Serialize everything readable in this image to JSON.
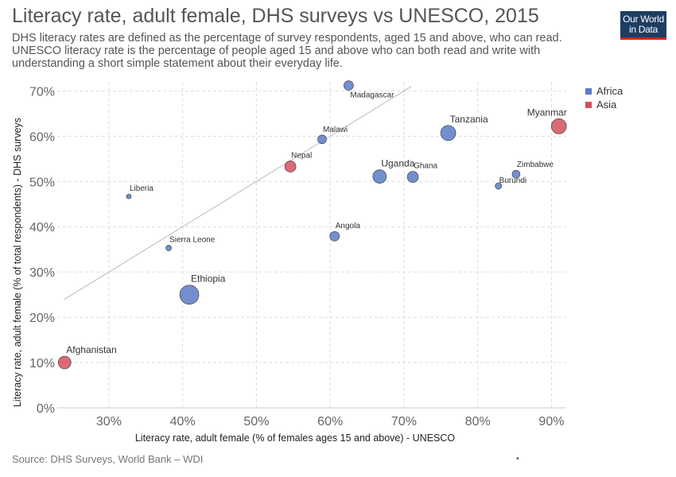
{
  "header": {
    "title": "Literacy rate, adult female, DHS surveys vs UNESCO, 2015",
    "subtitle": "DHS literacy rates are defined as the percentage of survey respondents, aged 15 and above, who can read. UNESCO literacy rate is the percentage of people aged 15 and above who can both read and write with understanding a short simple statement about their everyday life."
  },
  "logo": {
    "line1": "Our World",
    "line2": "in Data"
  },
  "footer": {
    "source": "Source: DHS Surveys, World Bank – WDI",
    "marker": "•"
  },
  "colors": {
    "Africa": "#5b7bc8",
    "Asia": "#d4505e",
    "reference_line": "#bbbbbb",
    "grid": "#dddddd"
  },
  "chart_data": {
    "type": "scatter",
    "xlabel": "Literacy rate, adult female (% of females ages 15 and above) - UNESCO",
    "ylabel": "Literacy rate, adult female (% of total respondents) - DHS surveys",
    "xlim": [
      23,
      92
    ],
    "ylim": [
      0,
      72
    ],
    "x_ticks": [
      30,
      40,
      50,
      60,
      70,
      80,
      90
    ],
    "x_tick_labels": [
      "30%",
      "40%",
      "50%",
      "60%",
      "70%",
      "80%",
      "90%"
    ],
    "y_ticks": [
      0,
      10,
      20,
      30,
      40,
      50,
      60,
      70
    ],
    "y_tick_labels": [
      "0%",
      "10%",
      "20%",
      "30%",
      "40%",
      "50%",
      "60%",
      "70%"
    ],
    "grid": true,
    "legend_position": "top-right",
    "legend": [
      {
        "name": "Africa",
        "color": "#5b7bc8"
      },
      {
        "name": "Asia",
        "color": "#d4505e"
      }
    ],
    "reference_line": {
      "from": [
        23.9,
        23.9
      ],
      "to": [
        71,
        71
      ]
    },
    "points": [
      {
        "label": "Madagascar",
        "x": 62.5,
        "y": 71.2,
        "size": 6,
        "region": "Africa"
      },
      {
        "label": "Myanmar",
        "x": 91.0,
        "y": 62.2,
        "size": 9.5,
        "region": "Asia"
      },
      {
        "label": "Tanzania",
        "x": 76.0,
        "y": 60.7,
        "size": 9.5,
        "region": "Africa"
      },
      {
        "label": "Malawi",
        "x": 58.9,
        "y": 59.3,
        "size": 5.5,
        "region": "Africa"
      },
      {
        "label": "Nepal",
        "x": 54.6,
        "y": 53.3,
        "size": 7,
        "region": "Asia"
      },
      {
        "label": "Zimbabwe",
        "x": 85.2,
        "y": 51.6,
        "size": 5,
        "region": "Africa"
      },
      {
        "label": "Uganda",
        "x": 66.7,
        "y": 51.1,
        "size": 8.5,
        "region": "Africa"
      },
      {
        "label": "Ghana",
        "x": 71.2,
        "y": 51.0,
        "size": 7,
        "region": "Africa"
      },
      {
        "label": "Burundi",
        "x": 82.8,
        "y": 49.0,
        "size": 4,
        "region": "Africa"
      },
      {
        "label": "Liberia",
        "x": 32.7,
        "y": 46.7,
        "size": 3,
        "region": "Africa"
      },
      {
        "label": "Angola",
        "x": 60.6,
        "y": 37.9,
        "size": 6,
        "region": "Africa"
      },
      {
        "label": "Sierra Leone",
        "x": 38.1,
        "y": 35.3,
        "size": 3.5,
        "region": "Africa"
      },
      {
        "label": "Ethiopia",
        "x": 40.9,
        "y": 25.0,
        "size": 12,
        "region": "Africa"
      },
      {
        "label": "Afghanistan",
        "x": 24.0,
        "y": 10.0,
        "size": 8,
        "region": "Asia"
      }
    ]
  }
}
